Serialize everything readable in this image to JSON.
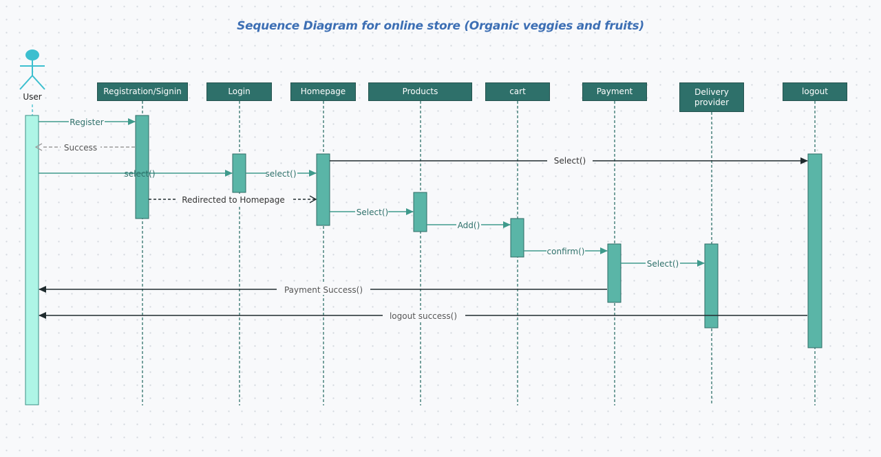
{
  "title": "Sequence Diagram for online store (Organic veggies and fruits)",
  "actor": {
    "label": "User"
  },
  "lifelines": [
    {
      "id": "registration",
      "label": "Registration/Signin"
    },
    {
      "id": "login",
      "label": "Login"
    },
    {
      "id": "homepage",
      "label": "Homepage"
    },
    {
      "id": "products",
      "label": "Products"
    },
    {
      "id": "cart",
      "label": "cart"
    },
    {
      "id": "payment",
      "label": "Payment"
    },
    {
      "id": "delivery",
      "label": "Delivery provider"
    },
    {
      "id": "logout",
      "label": "logout"
    }
  ],
  "messages": [
    {
      "from": "User",
      "to": "Registration/Signin",
      "label": "Register",
      "style": "solid"
    },
    {
      "from": "Registration/Signin",
      "to": "User",
      "label": "Success",
      "style": "dashed-return"
    },
    {
      "from": "User",
      "to": "Login",
      "label": "select()",
      "style": "solid"
    },
    {
      "from": "Login",
      "to": "Homepage",
      "label": "select()",
      "style": "solid"
    },
    {
      "from": "Homepage",
      "to": "logout",
      "label": "Select()",
      "style": "solid"
    },
    {
      "from": "Registration/Signin",
      "to": "Homepage",
      "label": "Redirected to Homepage",
      "style": "dashed"
    },
    {
      "from": "Homepage",
      "to": "Products",
      "label": "Select()",
      "style": "solid"
    },
    {
      "from": "Products",
      "to": "cart",
      "label": "Add()",
      "style": "solid"
    },
    {
      "from": "cart",
      "to": "Payment",
      "label": "confirm()",
      "style": "solid"
    },
    {
      "from": "Payment",
      "to": "Delivery provider",
      "label": "Select()",
      "style": "solid"
    },
    {
      "from": "Payment",
      "to": "User",
      "label": "Payment Success()",
      "style": "solid"
    },
    {
      "from": "logout",
      "to": "User",
      "label": "logout success()",
      "style": "solid"
    }
  ],
  "colors": {
    "title": "#3d6fb4",
    "header_fill": "#2e706a",
    "activation_fill": "#5ab5a7",
    "user_activation_fill": "#aef5e6",
    "actor": "#3cbfcf",
    "teal_line": "#3f9a8c",
    "dark_line": "#1f2b2e",
    "gray_return": "#9a9a9a"
  }
}
